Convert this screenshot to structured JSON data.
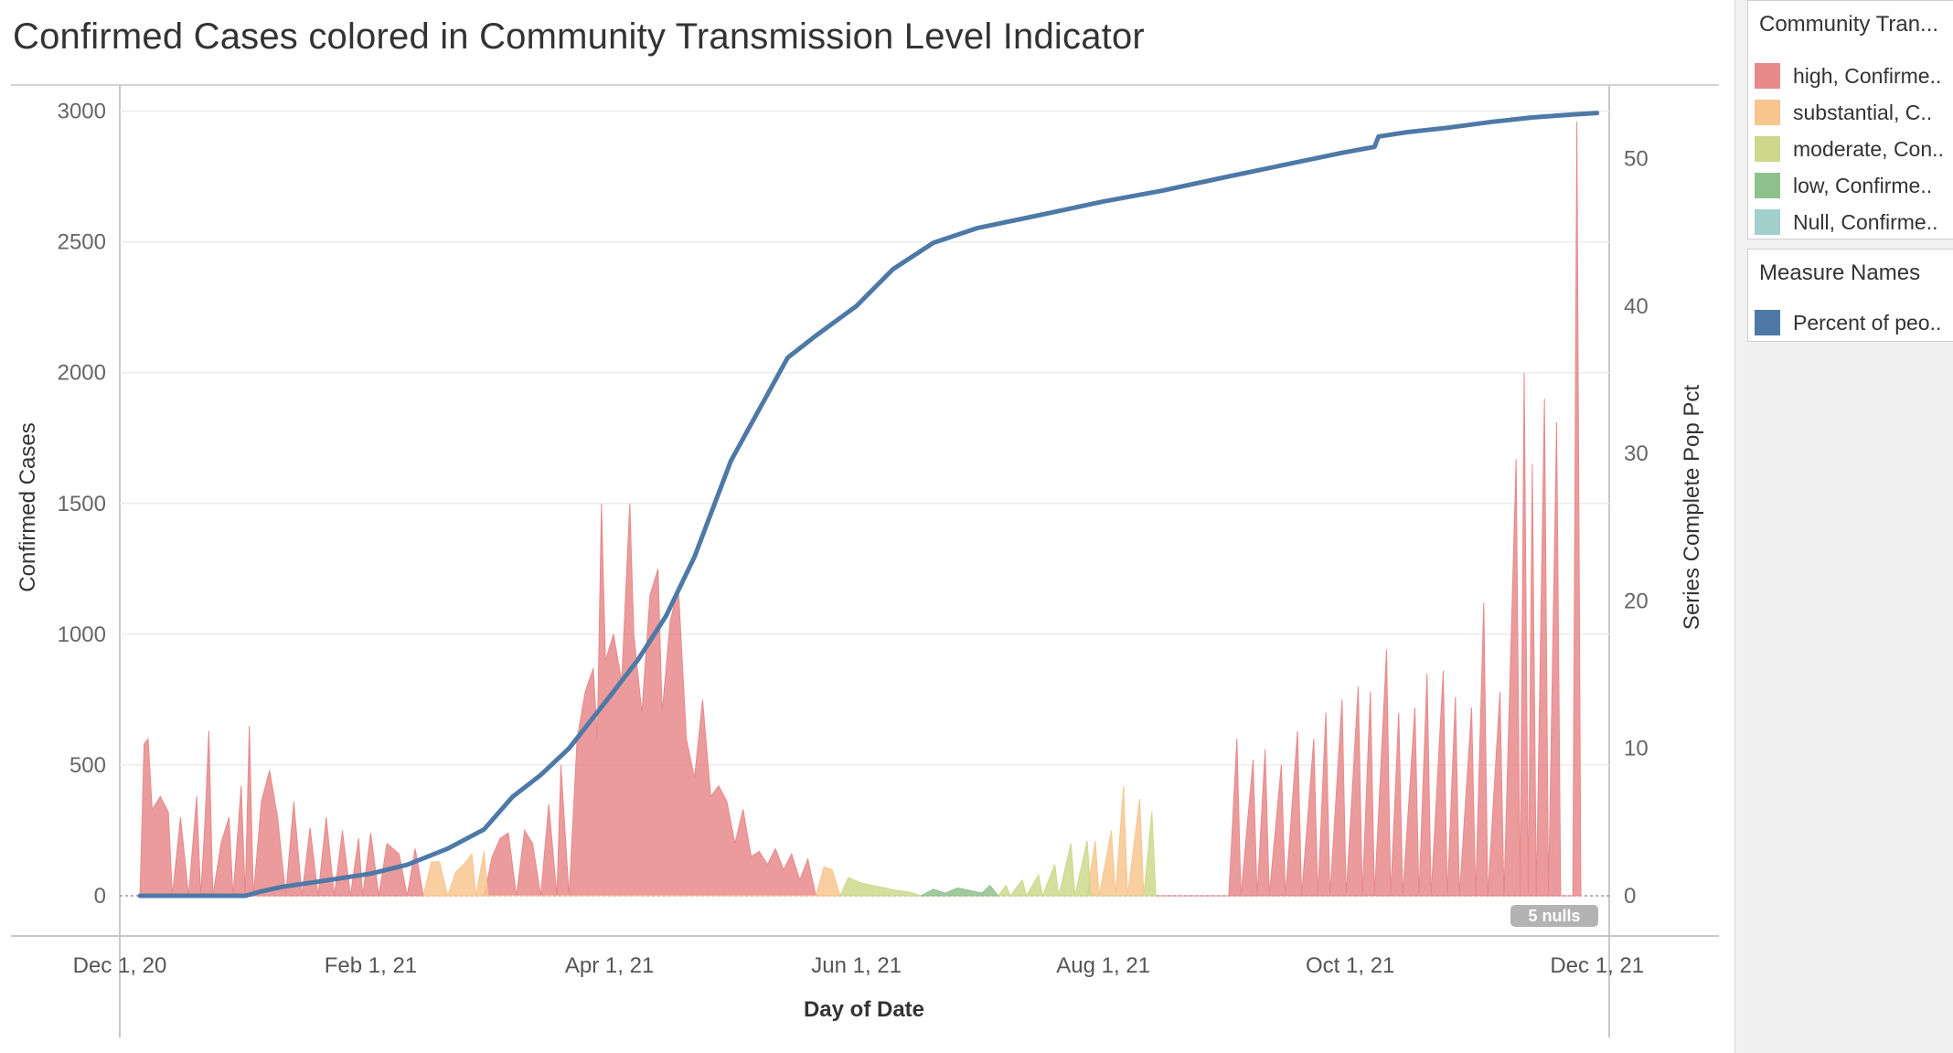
{
  "chart_data": {
    "type": "area",
    "title": "Confirmed Cases colored in Community Transmission Level Indicator",
    "xlabel": "Day of Date",
    "ylabel": "Confirmed Cases",
    "y2label": "Series Complete Pop Pct",
    "ylim": [
      0,
      3100
    ],
    "y2lim": [
      0,
      55
    ],
    "xlim": [
      "2020-12-01",
      "2021-12-04"
    ],
    "x_ticks": [
      "Dec 1, 20",
      "Feb 1, 21",
      "Apr 1, 21",
      "Jun 1, 21",
      "Aug 1, 21",
      "Oct 1, 21",
      "Dec 1, 21"
    ],
    "x_tick_dates": [
      "2020-12-01",
      "2021-02-01",
      "2021-04-01",
      "2021-06-01",
      "2021-08-01",
      "2021-10-01",
      "2021-12-01"
    ],
    "y_ticks": [
      "0",
      "500",
      "1000",
      "1500",
      "2000",
      "2500",
      "3000"
    ],
    "y_tick_values": [
      0,
      500,
      1000,
      1500,
      2000,
      2500,
      3000
    ],
    "y2_ticks": [
      "0",
      "10",
      "20",
      "30",
      "40",
      "50"
    ],
    "y2_tick_values": [
      0,
      10,
      20,
      30,
      40,
      50
    ],
    "grid": true,
    "legend_position": "right",
    "nulls_indicator": "5 nulls",
    "series": [
      {
        "name": "high, Confirme..",
        "color": "#e8898b",
        "points": [
          [
            "2020-12-06",
            0
          ],
          [
            "2020-12-07",
            580
          ],
          [
            "2020-12-08",
            600
          ],
          [
            "2020-12-09",
            330
          ],
          [
            "2020-12-11",
            380
          ],
          [
            "2020-12-13",
            320
          ],
          [
            "2020-12-14",
            0
          ],
          [
            "2020-12-16",
            300
          ],
          [
            "2020-12-18",
            0
          ],
          [
            "2020-12-20",
            380
          ],
          [
            "2020-12-21",
            0
          ],
          [
            "2020-12-22",
            270
          ],
          [
            "2020-12-23",
            630
          ],
          [
            "2020-12-24",
            0
          ],
          [
            "2020-12-26",
            200
          ],
          [
            "2020-12-28",
            300
          ],
          [
            "2020-12-29",
            0
          ],
          [
            "2020-12-31",
            420
          ],
          [
            "2021-01-01",
            0
          ],
          [
            "2021-01-02",
            650
          ],
          [
            "2021-01-03",
            0
          ],
          [
            "2021-01-05",
            360
          ],
          [
            "2021-01-07",
            480
          ],
          [
            "2021-01-09",
            300
          ],
          [
            "2021-01-11",
            0
          ],
          [
            "2021-01-13",
            360
          ],
          [
            "2021-01-15",
            0
          ],
          [
            "2021-01-17",
            260
          ],
          [
            "2021-01-19",
            0
          ],
          [
            "2021-01-21",
            300
          ],
          [
            "2021-01-23",
            0
          ],
          [
            "2021-01-25",
            250
          ],
          [
            "2021-01-27",
            0
          ],
          [
            "2021-01-29",
            220
          ],
          [
            "2021-01-30",
            0
          ],
          [
            "2021-02-01",
            240
          ],
          [
            "2021-02-03",
            0
          ],
          [
            "2021-02-05",
            200
          ],
          [
            "2021-02-08",
            160
          ],
          [
            "2021-02-10",
            0
          ],
          [
            "2021-02-12",
            180
          ],
          [
            "2021-02-14",
            0
          ],
          [
            "2021-03-01",
            0
          ],
          [
            "2021-03-03",
            150
          ],
          [
            "2021-03-05",
            220
          ],
          [
            "2021-03-07",
            240
          ],
          [
            "2021-03-09",
            0
          ],
          [
            "2021-03-11",
            250
          ],
          [
            "2021-03-13",
            200
          ],
          [
            "2021-03-15",
            0
          ],
          [
            "2021-03-17",
            350
          ],
          [
            "2021-03-19",
            0
          ],
          [
            "2021-03-20",
            500
          ],
          [
            "2021-03-22",
            0
          ],
          [
            "2021-03-24",
            600
          ],
          [
            "2021-03-26",
            780
          ],
          [
            "2021-03-28",
            870
          ],
          [
            "2021-03-29",
            600
          ],
          [
            "2021-03-30",
            1500
          ],
          [
            "2021-03-31",
            900
          ],
          [
            "2021-04-02",
            1000
          ],
          [
            "2021-04-04",
            820
          ],
          [
            "2021-04-06",
            1500
          ],
          [
            "2021-04-07",
            1000
          ],
          [
            "2021-04-09",
            700
          ],
          [
            "2021-04-11",
            1150
          ],
          [
            "2021-04-13",
            1250
          ],
          [
            "2021-04-14",
            700
          ],
          [
            "2021-04-16",
            1050
          ],
          [
            "2021-04-18",
            1180
          ],
          [
            "2021-04-20",
            600
          ],
          [
            "2021-04-22",
            450
          ],
          [
            "2021-04-24",
            750
          ],
          [
            "2021-04-26",
            380
          ],
          [
            "2021-04-28",
            420
          ],
          [
            "2021-04-30",
            360
          ],
          [
            "2021-05-02",
            200
          ],
          [
            "2021-05-04",
            330
          ],
          [
            "2021-05-06",
            150
          ],
          [
            "2021-05-08",
            170
          ],
          [
            "2021-05-10",
            120
          ],
          [
            "2021-05-12",
            180
          ],
          [
            "2021-05-14",
            100
          ],
          [
            "2021-05-16",
            160
          ],
          [
            "2021-05-18",
            60
          ],
          [
            "2021-05-20",
            140
          ],
          [
            "2021-05-22",
            0
          ],
          [
            "2021-09-01",
            0
          ],
          [
            "2021-09-03",
            600
          ],
          [
            "2021-09-04",
            0
          ],
          [
            "2021-09-07",
            520
          ],
          [
            "2021-09-08",
            0
          ],
          [
            "2021-09-10",
            560
          ],
          [
            "2021-09-11",
            0
          ],
          [
            "2021-09-14",
            500
          ],
          [
            "2021-09-15",
            0
          ],
          [
            "2021-09-18",
            630
          ],
          [
            "2021-09-19",
            0
          ],
          [
            "2021-09-22",
            600
          ],
          [
            "2021-09-23",
            0
          ],
          [
            "2021-09-25",
            700
          ],
          [
            "2021-09-26",
            0
          ],
          [
            "2021-09-29",
            750
          ],
          [
            "2021-09-30",
            0
          ],
          [
            "2021-10-03",
            800
          ],
          [
            "2021-10-04",
            0
          ],
          [
            "2021-10-06",
            780
          ],
          [
            "2021-10-07",
            0
          ],
          [
            "2021-10-10",
            940
          ],
          [
            "2021-10-11",
            0
          ],
          [
            "2021-10-13",
            700
          ],
          [
            "2021-10-14",
            0
          ],
          [
            "2021-10-17",
            720
          ],
          [
            "2021-10-18",
            0
          ],
          [
            "2021-10-20",
            850
          ],
          [
            "2021-10-21",
            0
          ],
          [
            "2021-10-24",
            860
          ],
          [
            "2021-10-25",
            0
          ],
          [
            "2021-10-27",
            760
          ],
          [
            "2021-10-28",
            0
          ],
          [
            "2021-10-31",
            720
          ],
          [
            "2021-11-01",
            0
          ],
          [
            "2021-11-03",
            1120
          ],
          [
            "2021-11-04",
            0
          ],
          [
            "2021-11-07",
            780
          ],
          [
            "2021-11-08",
            0
          ],
          [
            "2021-11-11",
            1670
          ],
          [
            "2021-11-12",
            0
          ],
          [
            "2021-11-13",
            2000
          ],
          [
            "2021-11-14",
            0
          ],
          [
            "2021-11-15",
            1650
          ],
          [
            "2021-11-16",
            0
          ],
          [
            "2021-11-18",
            1900
          ],
          [
            "2021-11-19",
            0
          ],
          [
            "2021-11-21",
            1810
          ],
          [
            "2021-11-22",
            0
          ],
          [
            "2021-11-25",
            0
          ],
          [
            "2021-11-26",
            2960
          ],
          [
            "2021-11-27",
            0
          ]
        ]
      },
      {
        "name": "substantial, C..",
        "color": "#f8c58f",
        "points": [
          [
            "2021-02-14",
            0
          ],
          [
            "2021-02-16",
            130
          ],
          [
            "2021-02-18",
            130
          ],
          [
            "2021-02-20",
            0
          ],
          [
            "2021-02-22",
            90
          ],
          [
            "2021-02-24",
            120
          ],
          [
            "2021-02-26",
            160
          ],
          [
            "2021-02-27",
            0
          ],
          [
            "2021-03-01",
            170
          ],
          [
            "2021-03-02",
            0
          ],
          [
            "2021-05-22",
            0
          ],
          [
            "2021-05-24",
            110
          ],
          [
            "2021-05-26",
            100
          ],
          [
            "2021-05-28",
            0
          ],
          [
            "2021-07-28",
            0
          ],
          [
            "2021-07-30",
            210
          ],
          [
            "2021-07-31",
            0
          ],
          [
            "2021-08-03",
            250
          ],
          [
            "2021-08-04",
            0
          ],
          [
            "2021-08-06",
            420
          ],
          [
            "2021-08-07",
            0
          ],
          [
            "2021-08-10",
            370
          ],
          [
            "2021-08-11",
            0
          ]
        ]
      },
      {
        "name": "moderate, Con..",
        "color": "#cdd88c",
        "points": [
          [
            "2021-05-28",
            0
          ],
          [
            "2021-05-30",
            70
          ],
          [
            "2021-06-02",
            50
          ],
          [
            "2021-06-05",
            40
          ],
          [
            "2021-06-08",
            30
          ],
          [
            "2021-06-11",
            20
          ],
          [
            "2021-06-14",
            15
          ],
          [
            "2021-06-17",
            0
          ],
          [
            "2021-07-06",
            0
          ],
          [
            "2021-07-08",
            40
          ],
          [
            "2021-07-09",
            0
          ],
          [
            "2021-07-12",
            60
          ],
          [
            "2021-07-13",
            0
          ],
          [
            "2021-07-16",
            80
          ],
          [
            "2021-07-17",
            0
          ],
          [
            "2021-07-20",
            120
          ],
          [
            "2021-07-21",
            0
          ],
          [
            "2021-07-24",
            200
          ],
          [
            "2021-07-25",
            0
          ],
          [
            "2021-07-28",
            210
          ],
          [
            "2021-07-29",
            0
          ],
          [
            "2021-08-11",
            0
          ],
          [
            "2021-08-13",
            320
          ],
          [
            "2021-08-14",
            0
          ]
        ]
      },
      {
        "name": "low, Confirme..",
        "color": "#8fc18d",
        "points": [
          [
            "2021-06-17",
            0
          ],
          [
            "2021-06-20",
            25
          ],
          [
            "2021-06-23",
            10
          ],
          [
            "2021-06-26",
            30
          ],
          [
            "2021-06-29",
            20
          ],
          [
            "2021-07-02",
            10
          ],
          [
            "2021-07-04",
            40
          ],
          [
            "2021-07-06",
            0
          ]
        ]
      },
      {
        "name": "Null, Confirme..",
        "color": "#a2cfcc",
        "points": []
      },
      {
        "name": "Percent of peo..",
        "color": "#4e79a7",
        "axis": "right",
        "points": [
          [
            "2020-12-06",
            0
          ],
          [
            "2020-12-20",
            0
          ],
          [
            "2021-01-01",
            0
          ],
          [
            "2021-01-05",
            0.3
          ],
          [
            "2021-01-10",
            0.6
          ],
          [
            "2021-01-20",
            1.0
          ],
          [
            "2021-02-01",
            1.5
          ],
          [
            "2021-02-10",
            2.1
          ],
          [
            "2021-02-20",
            3.2
          ],
          [
            "2021-03-01",
            4.5
          ],
          [
            "2021-03-08",
            6.7
          ],
          [
            "2021-03-15",
            8.2
          ],
          [
            "2021-03-22",
            10.0
          ],
          [
            "2021-04-01",
            13.5
          ],
          [
            "2021-04-08",
            16.0
          ],
          [
            "2021-04-15",
            19.0
          ],
          [
            "2021-04-22",
            23.0
          ],
          [
            "2021-05-01",
            29.5
          ],
          [
            "2021-05-08",
            33.0
          ],
          [
            "2021-05-15",
            36.5
          ],
          [
            "2021-05-22",
            38.0
          ],
          [
            "2021-06-01",
            40.0
          ],
          [
            "2021-06-10",
            42.5
          ],
          [
            "2021-06-20",
            44.3
          ],
          [
            "2021-07-01",
            45.3
          ],
          [
            "2021-07-15",
            46.1
          ],
          [
            "2021-08-01",
            47.1
          ],
          [
            "2021-08-15",
            47.8
          ],
          [
            "2021-09-01",
            48.8
          ],
          [
            "2021-09-15",
            49.6
          ],
          [
            "2021-09-29",
            50.4
          ],
          [
            "2021-10-07",
            50.8
          ],
          [
            "2021-10-08",
            51.5
          ],
          [
            "2021-10-15",
            51.8
          ],
          [
            "2021-10-25",
            52.1
          ],
          [
            "2021-11-05",
            52.5
          ],
          [
            "2021-11-15",
            52.8
          ],
          [
            "2021-11-25",
            53.0
          ],
          [
            "2021-12-01",
            53.1
          ]
        ]
      }
    ]
  },
  "legends": [
    {
      "title": "Community Tran...",
      "items": [
        {
          "label": "high, Confirme..",
          "color": "#e8898b"
        },
        {
          "label": "substantial, C..",
          "color": "#f8c58f"
        },
        {
          "label": "moderate, Con..",
          "color": "#cdd88c"
        },
        {
          "label": "low, Confirme..",
          "color": "#8fc18d"
        },
        {
          "label": "Null, Confirme..",
          "color": "#a2cfcc"
        }
      ]
    },
    {
      "title": "Measure Names",
      "items": [
        {
          "label": "Percent of peo..",
          "color": "#4e79a7"
        }
      ]
    }
  ]
}
